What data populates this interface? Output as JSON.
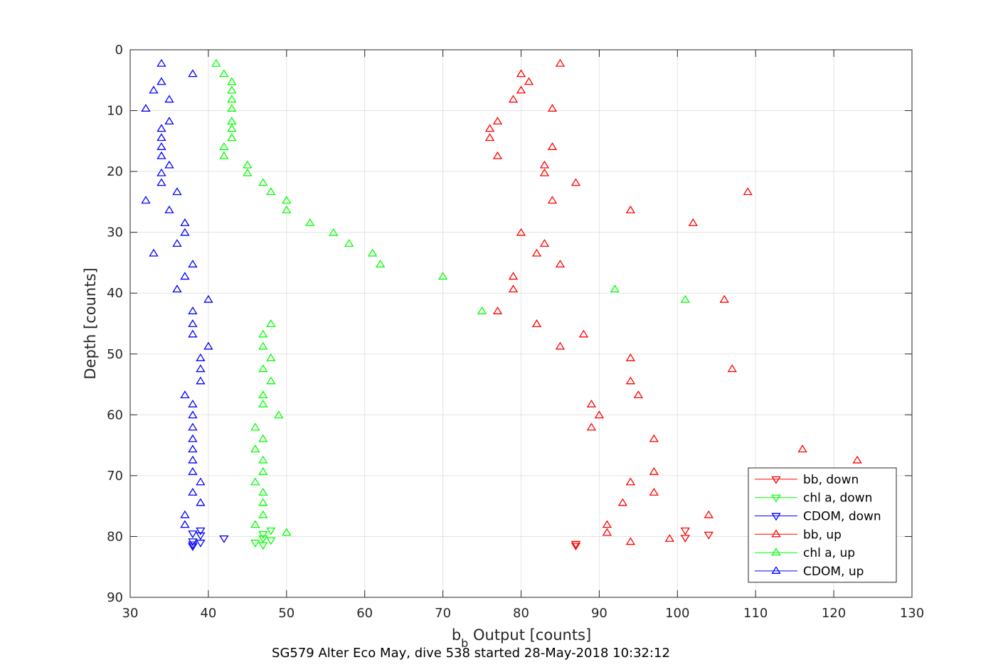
{
  "chart_data": {
    "type": "scatter",
    "xlabel_base": "b",
    "xlabel_sub": "b",
    "xlabel_rest": " Output [counts]",
    "ylabel": "Depth [counts]",
    "caption": "SG579 Alter Eco May, dive 538 started 28-May-2018 10:32:12",
    "xlim": [
      30,
      130
    ],
    "ylim": [
      0,
      90
    ],
    "y_reversed": true,
    "xticks": [
      30,
      40,
      50,
      60,
      70,
      80,
      90,
      100,
      110,
      120,
      130
    ],
    "yticks": [
      0,
      10,
      20,
      30,
      40,
      50,
      60,
      70,
      80,
      90
    ],
    "grid": true,
    "legend_position": "bottom-right",
    "series": [
      {
        "name": "bb, down",
        "color": "#ff0000",
        "marker": "triangle-down",
        "points": [
          [
            87,
            81.2
          ],
          [
            87,
            81.5
          ],
          [
            101,
            79.0
          ],
          [
            101,
            80.2
          ],
          [
            104,
            79.7
          ]
        ]
      },
      {
        "name": "chl a, down",
        "color": "#00ff00",
        "marker": "triangle-down",
        "points": [
          [
            47,
            79.6
          ],
          [
            48,
            79.0
          ],
          [
            47,
            80.3
          ],
          [
            46,
            81.0
          ],
          [
            48,
            80.6
          ],
          [
            47,
            81.4
          ]
        ]
      },
      {
        "name": "CDOM, down",
        "color": "#0000ff",
        "marker": "triangle-down",
        "points": [
          [
            38,
            79.5
          ],
          [
            39,
            79.0
          ],
          [
            39,
            79.8
          ],
          [
            42,
            80.3
          ],
          [
            38,
            80.8
          ],
          [
            39,
            81.0
          ],
          [
            38,
            81.3
          ],
          [
            38,
            81.6
          ]
        ]
      },
      {
        "name": "bb, up",
        "color": "#ff0000",
        "marker": "triangle-up",
        "points": [
          [
            85,
            2.3
          ],
          [
            80,
            4.0
          ],
          [
            81,
            5.3
          ],
          [
            80,
            6.7
          ],
          [
            79,
            8.2
          ],
          [
            84,
            9.7
          ],
          [
            77,
            11.8
          ],
          [
            76,
            13.0
          ],
          [
            76,
            14.5
          ],
          [
            84,
            16.0
          ],
          [
            77,
            17.5
          ],
          [
            83,
            19.0
          ],
          [
            83,
            20.3
          ],
          [
            87,
            21.9
          ],
          [
            109,
            23.4
          ],
          [
            84,
            24.8
          ],
          [
            94,
            26.4
          ],
          [
            102,
            28.5
          ],
          [
            80,
            30.1
          ],
          [
            83,
            31.9
          ],
          [
            82,
            33.5
          ],
          [
            85,
            35.3
          ],
          [
            79,
            37.3
          ],
          [
            79,
            39.4
          ],
          [
            106,
            41.1
          ],
          [
            77,
            43.0
          ],
          [
            82,
            45.1
          ],
          [
            88,
            46.8
          ],
          [
            85,
            48.8
          ],
          [
            94,
            50.7
          ],
          [
            107,
            52.5
          ],
          [
            94,
            54.5
          ],
          [
            95,
            56.8
          ],
          [
            89,
            58.3
          ],
          [
            90,
            60.1
          ],
          [
            89,
            62.1
          ],
          [
            97,
            64.0
          ],
          [
            116,
            65.7
          ],
          [
            123,
            67.5
          ],
          [
            97,
            69.4
          ],
          [
            94,
            71.1
          ],
          [
            97,
            72.8
          ],
          [
            93,
            74.5
          ],
          [
            104,
            76.5
          ],
          [
            91,
            78.1
          ],
          [
            91,
            79.4
          ],
          [
            99,
            80.4
          ],
          [
            94,
            80.9
          ]
        ]
      },
      {
        "name": "chl a, up",
        "color": "#00ff00",
        "marker": "triangle-up",
        "points": [
          [
            41,
            2.3
          ],
          [
            42,
            4.0
          ],
          [
            43,
            5.3
          ],
          [
            43,
            6.7
          ],
          [
            43,
            8.2
          ],
          [
            43,
            9.7
          ],
          [
            43,
            11.8
          ],
          [
            43,
            13.0
          ],
          [
            43,
            14.5
          ],
          [
            42,
            16.0
          ],
          [
            42,
            17.5
          ],
          [
            45,
            19.0
          ],
          [
            45,
            20.3
          ],
          [
            47,
            21.9
          ],
          [
            48,
            23.4
          ],
          [
            50,
            24.8
          ],
          [
            50,
            26.4
          ],
          [
            53,
            28.5
          ],
          [
            56,
            30.1
          ],
          [
            58,
            31.9
          ],
          [
            61,
            33.5
          ],
          [
            62,
            35.3
          ],
          [
            70,
            37.3
          ],
          [
            92,
            39.4
          ],
          [
            101,
            41.1
          ],
          [
            75,
            43.0
          ],
          [
            48,
            45.1
          ],
          [
            47,
            46.8
          ],
          [
            47,
            48.8
          ],
          [
            48,
            50.7
          ],
          [
            47,
            52.5
          ],
          [
            48,
            54.5
          ],
          [
            47,
            56.8
          ],
          [
            47,
            58.3
          ],
          [
            49,
            60.1
          ],
          [
            46,
            62.1
          ],
          [
            47,
            64.0
          ],
          [
            46,
            65.7
          ],
          [
            47,
            67.5
          ],
          [
            47,
            69.4
          ],
          [
            46,
            71.1
          ],
          [
            47,
            72.8
          ],
          [
            47,
            74.5
          ],
          [
            47,
            76.5
          ],
          [
            46,
            78.1
          ],
          [
            50,
            79.4
          ]
        ]
      },
      {
        "name": "CDOM, up",
        "color": "#0000ff",
        "marker": "triangle-up",
        "points": [
          [
            34,
            2.3
          ],
          [
            38,
            4.0
          ],
          [
            34,
            5.3
          ],
          [
            33,
            6.7
          ],
          [
            35,
            8.2
          ],
          [
            32,
            9.7
          ],
          [
            35,
            11.8
          ],
          [
            34,
            13.0
          ],
          [
            34,
            14.5
          ],
          [
            34,
            16.0
          ],
          [
            34,
            17.5
          ],
          [
            35,
            19.0
          ],
          [
            34,
            20.3
          ],
          [
            34,
            21.9
          ],
          [
            36,
            23.4
          ],
          [
            32,
            24.8
          ],
          [
            35,
            26.4
          ],
          [
            37,
            28.5
          ],
          [
            37,
            30.1
          ],
          [
            36,
            31.9
          ],
          [
            33,
            33.5
          ],
          [
            38,
            35.3
          ],
          [
            37,
            37.3
          ],
          [
            36,
            39.4
          ],
          [
            40,
            41.1
          ],
          [
            38,
            43.0
          ],
          [
            38,
            45.1
          ],
          [
            38,
            46.8
          ],
          [
            40,
            48.8
          ],
          [
            39,
            50.7
          ],
          [
            39,
            52.5
          ],
          [
            39,
            54.5
          ],
          [
            37,
            56.8
          ],
          [
            38,
            58.3
          ],
          [
            38,
            60.1
          ],
          [
            38,
            62.1
          ],
          [
            38,
            64.0
          ],
          [
            38,
            65.7
          ],
          [
            38,
            67.5
          ],
          [
            38,
            69.4
          ],
          [
            39,
            71.1
          ],
          [
            38,
            72.8
          ],
          [
            39,
            74.5
          ],
          [
            37,
            76.5
          ],
          [
            37,
            78.1
          ]
        ]
      }
    ]
  }
}
